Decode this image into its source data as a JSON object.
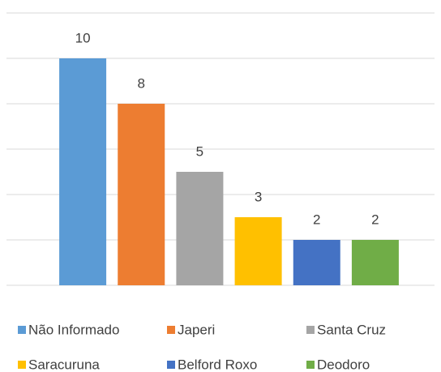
{
  "chart_data": {
    "type": "bar",
    "categories": [
      "Não Informado",
      "Japeri",
      "Santa Cruz",
      "Saracuruna",
      "Belford Roxo",
      "Deodoro"
    ],
    "values": [
      10,
      8,
      5,
      3,
      2,
      2
    ],
    "colors": [
      "#5b9bd5",
      "#ed7d31",
      "#a5a5a5",
      "#ffc000",
      "#4472c4",
      "#70ad47"
    ],
    "ylim": [
      0,
      12
    ],
    "yticks": [
      0,
      2,
      4,
      6,
      8,
      10,
      12
    ],
    "grid": true,
    "legend": "bottom"
  }
}
